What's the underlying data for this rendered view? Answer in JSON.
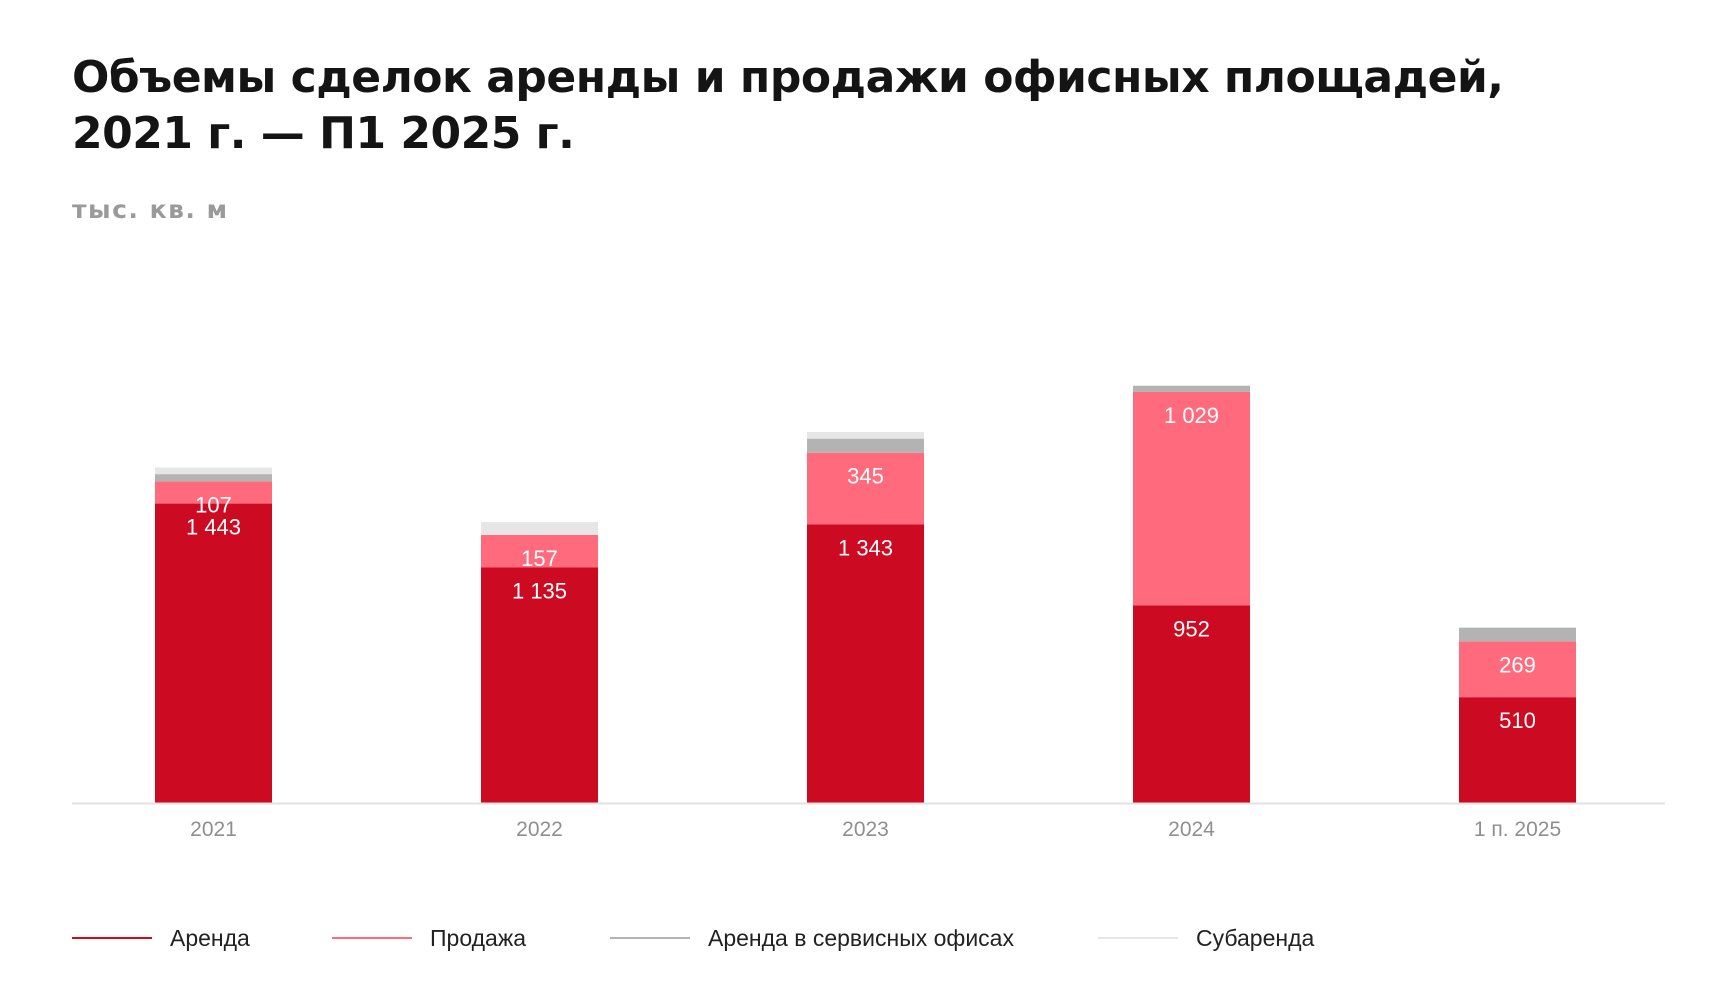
{
  "title": {
    "line1": "Объемы сделок аренды и продажи офисных площадей,",
    "line2": "2021 г. — П1 2025 г."
  },
  "unit_label": "тыс. кв. м",
  "colors": {
    "arenda": "#cc0a21",
    "prodazha": "#ff6b7d",
    "servis": "#b3b3b3",
    "subarenda": "#e6e6e6",
    "axis": "#e2e2e2"
  },
  "legend": [
    {
      "label": "Аренда",
      "color": "#cc0a21"
    },
    {
      "label": "Продажа",
      "color": "#ff6b7d"
    },
    {
      "label": "Аренда в сервисных офисах",
      "color": "#b3b3b3"
    },
    {
      "label": "Субаренда",
      "color": "#e6e6e6"
    }
  ],
  "chart_data": {
    "type": "bar",
    "stacked": true,
    "title": "Объемы сделок аренды и продажи офисных площадей, 2021 г. — П1 2025 г.",
    "ylabel": "тыс. кв. м",
    "xlabel": "",
    "categories": [
      "2021",
      "2022",
      "2023",
      "2024",
      "1 п. 2025"
    ],
    "ylim": [
      0,
      2400
    ],
    "grid": false,
    "legend_position": "bottom",
    "series": [
      {
        "name": "Аренда",
        "color": "#cc0a21",
        "values": [
          1443,
          1135,
          1343,
          952,
          510
        ],
        "labels": [
          "1 443",
          "1 135",
          "1 343",
          "952",
          "510"
        ]
      },
      {
        "name": "Продажа",
        "color": "#ff6b7d",
        "values": [
          107,
          157,
          345,
          1029,
          269
        ],
        "labels": [
          "107",
          "157",
          "345",
          "1 029",
          "269"
        ]
      },
      {
        "name": "Аренда в сервисных офисах",
        "color": "#b3b3b3",
        "values": [
          35,
          0,
          68,
          30,
          66
        ],
        "labels": null
      },
      {
        "name": "Субаренда",
        "color": "#e6e6e6",
        "values": [
          32,
          62,
          32,
          0,
          0
        ],
        "labels": null
      }
    ]
  }
}
